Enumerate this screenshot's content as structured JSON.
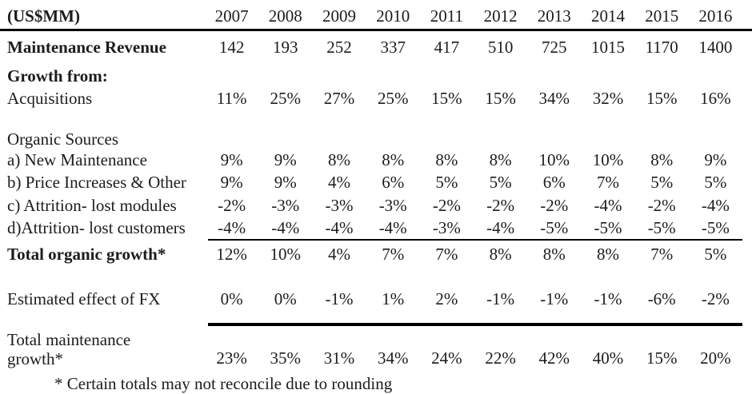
{
  "chart_data": {
    "type": "table",
    "unit_header": "(US$MM)",
    "columns": [
      "2007",
      "2008",
      "2009",
      "2010",
      "2011",
      "2012",
      "2013",
      "2014",
      "2015",
      "2016"
    ],
    "rows": [
      {
        "label": "Maintenance Revenue",
        "values": [
          "142",
          "193",
          "252",
          "337",
          "417",
          "510",
          "725",
          "1015",
          "1170",
          "1400"
        ]
      },
      {
        "label": "Growth from:",
        "values": []
      },
      {
        "label": "Acquisitions",
        "values": [
          "11%",
          "25%",
          "27%",
          "25%",
          "15%",
          "15%",
          "34%",
          "32%",
          "15%",
          "16%"
        ]
      },
      {
        "label": "Organic Sources",
        "values": []
      },
      {
        "label": "a) New Maintenance",
        "values": [
          "9%",
          "9%",
          "8%",
          "8%",
          "8%",
          "8%",
          "10%",
          "10%",
          "8%",
          "9%"
        ]
      },
      {
        "label": "b) Price Increases & Other",
        "values": [
          "9%",
          "9%",
          "4%",
          "6%",
          "5%",
          "5%",
          "6%",
          "7%",
          "5%",
          "5%"
        ]
      },
      {
        "label": "c) Attrition- lost modules",
        "values": [
          "-2%",
          "-3%",
          "-3%",
          "-3%",
          "-2%",
          "-2%",
          "-2%",
          "-4%",
          "-2%",
          "-4%"
        ]
      },
      {
        "label": "d)Attrition- lost customers",
        "values": [
          "-4%",
          "-4%",
          "-4%",
          "-4%",
          "-3%",
          "-4%",
          "-5%",
          "-5%",
          "-5%",
          "-5%"
        ]
      },
      {
        "label": "Total organic growth*",
        "values": [
          "12%",
          "10%",
          "4%",
          "7%",
          "7%",
          "8%",
          "8%",
          "8%",
          "7%",
          "5%"
        ]
      },
      {
        "label": "Estimated effect of FX",
        "values": [
          "0%",
          "0%",
          "-1%",
          "1%",
          "2%",
          "-1%",
          "-1%",
          "-1%",
          "-6%",
          "-2%"
        ]
      },
      {
        "label": "Total maintenance growth*",
        "label_line1": "Total maintenance",
        "label_line2": "growth*",
        "values": [
          "23%",
          "35%",
          "31%",
          "34%",
          "24%",
          "22%",
          "42%",
          "40%",
          "15%",
          "20%"
        ]
      }
    ],
    "footnote": "* Certain totals may not reconcile due to rounding",
    "text_color": "#1c1c1c",
    "rule_color": "#000000",
    "background_color": "#ffffff"
  }
}
